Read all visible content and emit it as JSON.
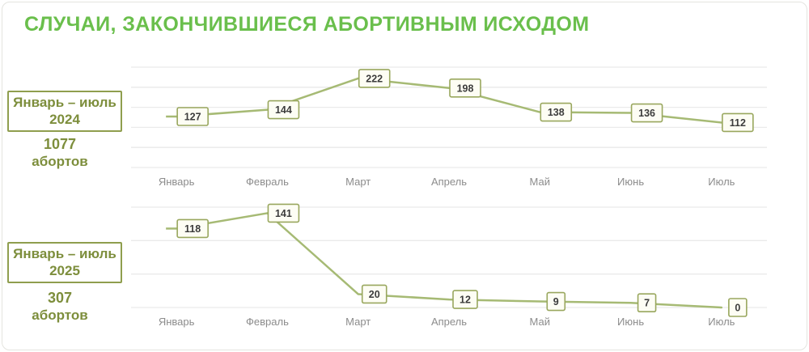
{
  "title": "СЛУЧАИ, ЗАКОНЧИВШИЕСЯ АБОРТИВНЫМ ИСХОДОМ",
  "colors": {
    "accent_green": "#6abf4c",
    "olive_text": "#7d8e3c",
    "olive_border": "#8f9e4e",
    "line": "#a6ba74",
    "label_box_border": "#99a75e",
    "label_box_fill": "#fdfdf4",
    "value_text": "#3c3c3c",
    "month_text": "#8c8c8c",
    "gridline": "#eaeaea"
  },
  "chart_data": [
    {
      "type": "line",
      "title": "Январь – июль 2024",
      "period_line1": "Январь – июль",
      "period_line2": "2024",
      "total": "1077",
      "total_unit": "абортов",
      "categories": [
        "Январь",
        "Февраль",
        "Март",
        "Апрель",
        "Май",
        "Июнь",
        "Июль"
      ],
      "values": [
        127,
        144,
        222,
        198,
        138,
        136,
        112
      ],
      "ylim": [
        0,
        250
      ],
      "gridline_step": 50,
      "grid": true,
      "data_labels": true,
      "legend": false
    },
    {
      "type": "line",
      "title": "Январь – июль 2025",
      "period_line1": "Январь – июль",
      "period_line2": "2025",
      "total": "307",
      "total_unit": "абортов",
      "categories": [
        "Январь",
        "Февраль",
        "Март",
        "Апрель",
        "Май",
        "Июнь",
        "Июль"
      ],
      "values": [
        118,
        141,
        20,
        12,
        9,
        7,
        0
      ],
      "ylim": [
        0,
        150
      ],
      "gridline_step": 50,
      "grid": true,
      "data_labels": true,
      "legend": false
    }
  ]
}
